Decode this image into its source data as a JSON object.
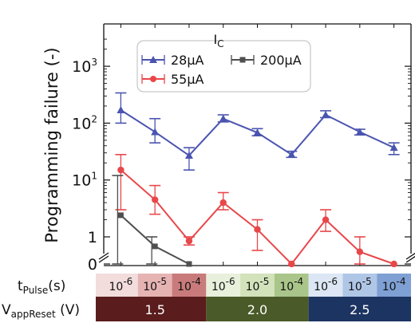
{
  "chart_data": {
    "type": "line",
    "ylabel": "Programming failure (-)",
    "yscale": "symlog",
    "y_ticks": [
      {
        "value": 0,
        "base": "0",
        "exp": ""
      },
      {
        "value": 1,
        "base": "1",
        "exp": ""
      },
      {
        "value": 10,
        "base": "10",
        "exp": "1"
      },
      {
        "value": 100,
        "base": "10",
        "exp": "2"
      },
      {
        "value": 1000,
        "base": "10",
        "exp": "3"
      }
    ],
    "x_categories": [
      "1e-6",
      "1e-5",
      "1e-4",
      "1e-6",
      "1e-5",
      "1e-4",
      "1e-6",
      "1e-5",
      "1e-4"
    ],
    "legend": {
      "title_main": "I",
      "title_sub": "C",
      "placement": "top-center"
    },
    "series": [
      {
        "name": "28µA",
        "color": "#4a54b0",
        "marker": "triangle",
        "values": [
          170,
          70,
          27,
          120,
          68,
          28,
          140,
          70,
          37
        ],
        "err_low": [
          100,
          45,
          15,
          105,
          60,
          25,
          125,
          62,
          28
        ],
        "err_high": [
          340,
          120,
          37,
          140,
          80,
          32,
          165,
          78,
          45
        ]
      },
      {
        "name": "55µA",
        "color": "#e8474a",
        "marker": "circle",
        "values": [
          15,
          4.5,
          0.85,
          4,
          1.35,
          0,
          2,
          0.45,
          0
        ],
        "err_low": [
          3,
          2.5,
          0.7,
          3,
          0.5,
          0,
          1.25,
          0,
          0
        ],
        "err_high": [
          28,
          8,
          1.0,
          6,
          2,
          0,
          3,
          1,
          0
        ]
      },
      {
        "name": "200µA",
        "color": "#4f4f4f",
        "marker": "square",
        "values": [
          2.4,
          0.65,
          0,
          null,
          null,
          null,
          null,
          null,
          null
        ],
        "err_low": [
          0,
          0,
          0,
          null,
          null,
          null,
          null,
          null,
          null
        ],
        "err_high": [
          12,
          1.0,
          0,
          null,
          null,
          null,
          null,
          null,
          null
        ]
      }
    ],
    "table": {
      "t_label_main": "t",
      "t_label_sub": "Pulse",
      "t_label_unit": "(s)",
      "t_cells": [
        {
          "base": "10",
          "exp": "-6",
          "color": "#f2dcdc"
        },
        {
          "base": "10",
          "exp": "-5",
          "color": "#e6b3b3"
        },
        {
          "base": "10",
          "exp": "-4",
          "color": "#c97b7b"
        },
        {
          "base": "10",
          "exp": "-6",
          "color": "#e8f0dc"
        },
        {
          "base": "10",
          "exp": "-5",
          "color": "#d2e2bb"
        },
        {
          "base": "10",
          "exp": "-4",
          "color": "#a9c589"
        },
        {
          "base": "10",
          "exp": "-6",
          "color": "#dce6f4"
        },
        {
          "base": "10",
          "exp": "-5",
          "color": "#b0c6e6"
        },
        {
          "base": "10",
          "exp": "-4",
          "color": "#7fa0d4"
        }
      ],
      "v_label_main": "V",
      "v_label_sub": "appReset",
      "v_label_unit": "(V)",
      "v_groups": [
        {
          "label": "1.5",
          "color": "#5a1c1c"
        },
        {
          "label": "2.0",
          "color": "#4a5a28"
        },
        {
          "label": "2.5",
          "color": "#1c3462"
        }
      ]
    }
  }
}
